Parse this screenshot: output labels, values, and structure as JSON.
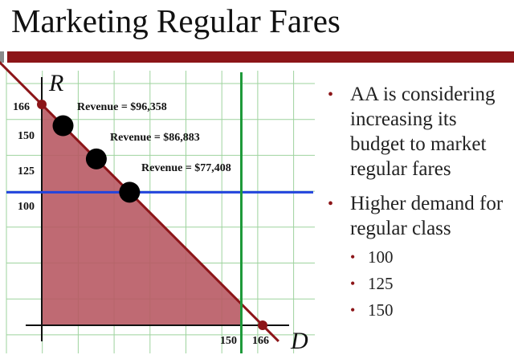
{
  "slide": {
    "title": "Marketing Regular Fares"
  },
  "chart": {
    "axis_label_r": "R",
    "axis_label_d": "D",
    "y_ticks": [
      "166",
      "150",
      "125",
      "100"
    ],
    "x_ticks": [
      "150",
      "166"
    ],
    "revenue_labels": [
      "Revenue = $96,358",
      "Revenue = $86,883",
      "Revenue = $77,408"
    ],
    "colors": {
      "region": "#b85a64",
      "constraint": "#8c1518",
      "demand_line": "#2244dd",
      "capacity_line": "#1e9a3a",
      "grid": "#9ed39e"
    }
  },
  "chart_data": {
    "type": "line",
    "xlabel": "D",
    "ylabel": "R",
    "constraint": {
      "r_intercept": 166,
      "d_intercept": 166
    },
    "horizontal_line_r": 100,
    "vertical_line_d": 150,
    "points": [
      {
        "r": 150,
        "revenue": "Revenue = $96,358"
      },
      {
        "r": 125,
        "revenue": "Revenue = $86,883"
      },
      {
        "r": 100,
        "revenue": "Revenue = $77,408"
      }
    ]
  },
  "bullets": {
    "main1": "AA is considering increasing its budget to market regular fares",
    "main2": "Higher demand for regular class",
    "sub": [
      "100",
      "125",
      "150"
    ]
  }
}
